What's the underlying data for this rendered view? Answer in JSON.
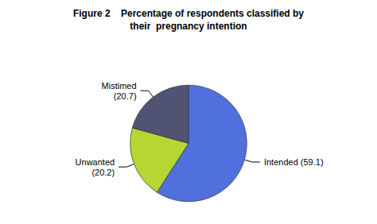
{
  "chart_data": {
    "type": "pie",
    "title": "Figure 2    Percentage of respondents classified by\ntheir  pregnancy intention",
    "categories": [
      "Intended (59.1)",
      "Unwanted\n(20.2)",
      "Mistimed\n(20.7)"
    ],
    "values": [
      59.1,
      20.2,
      20.7
    ]
  }
}
